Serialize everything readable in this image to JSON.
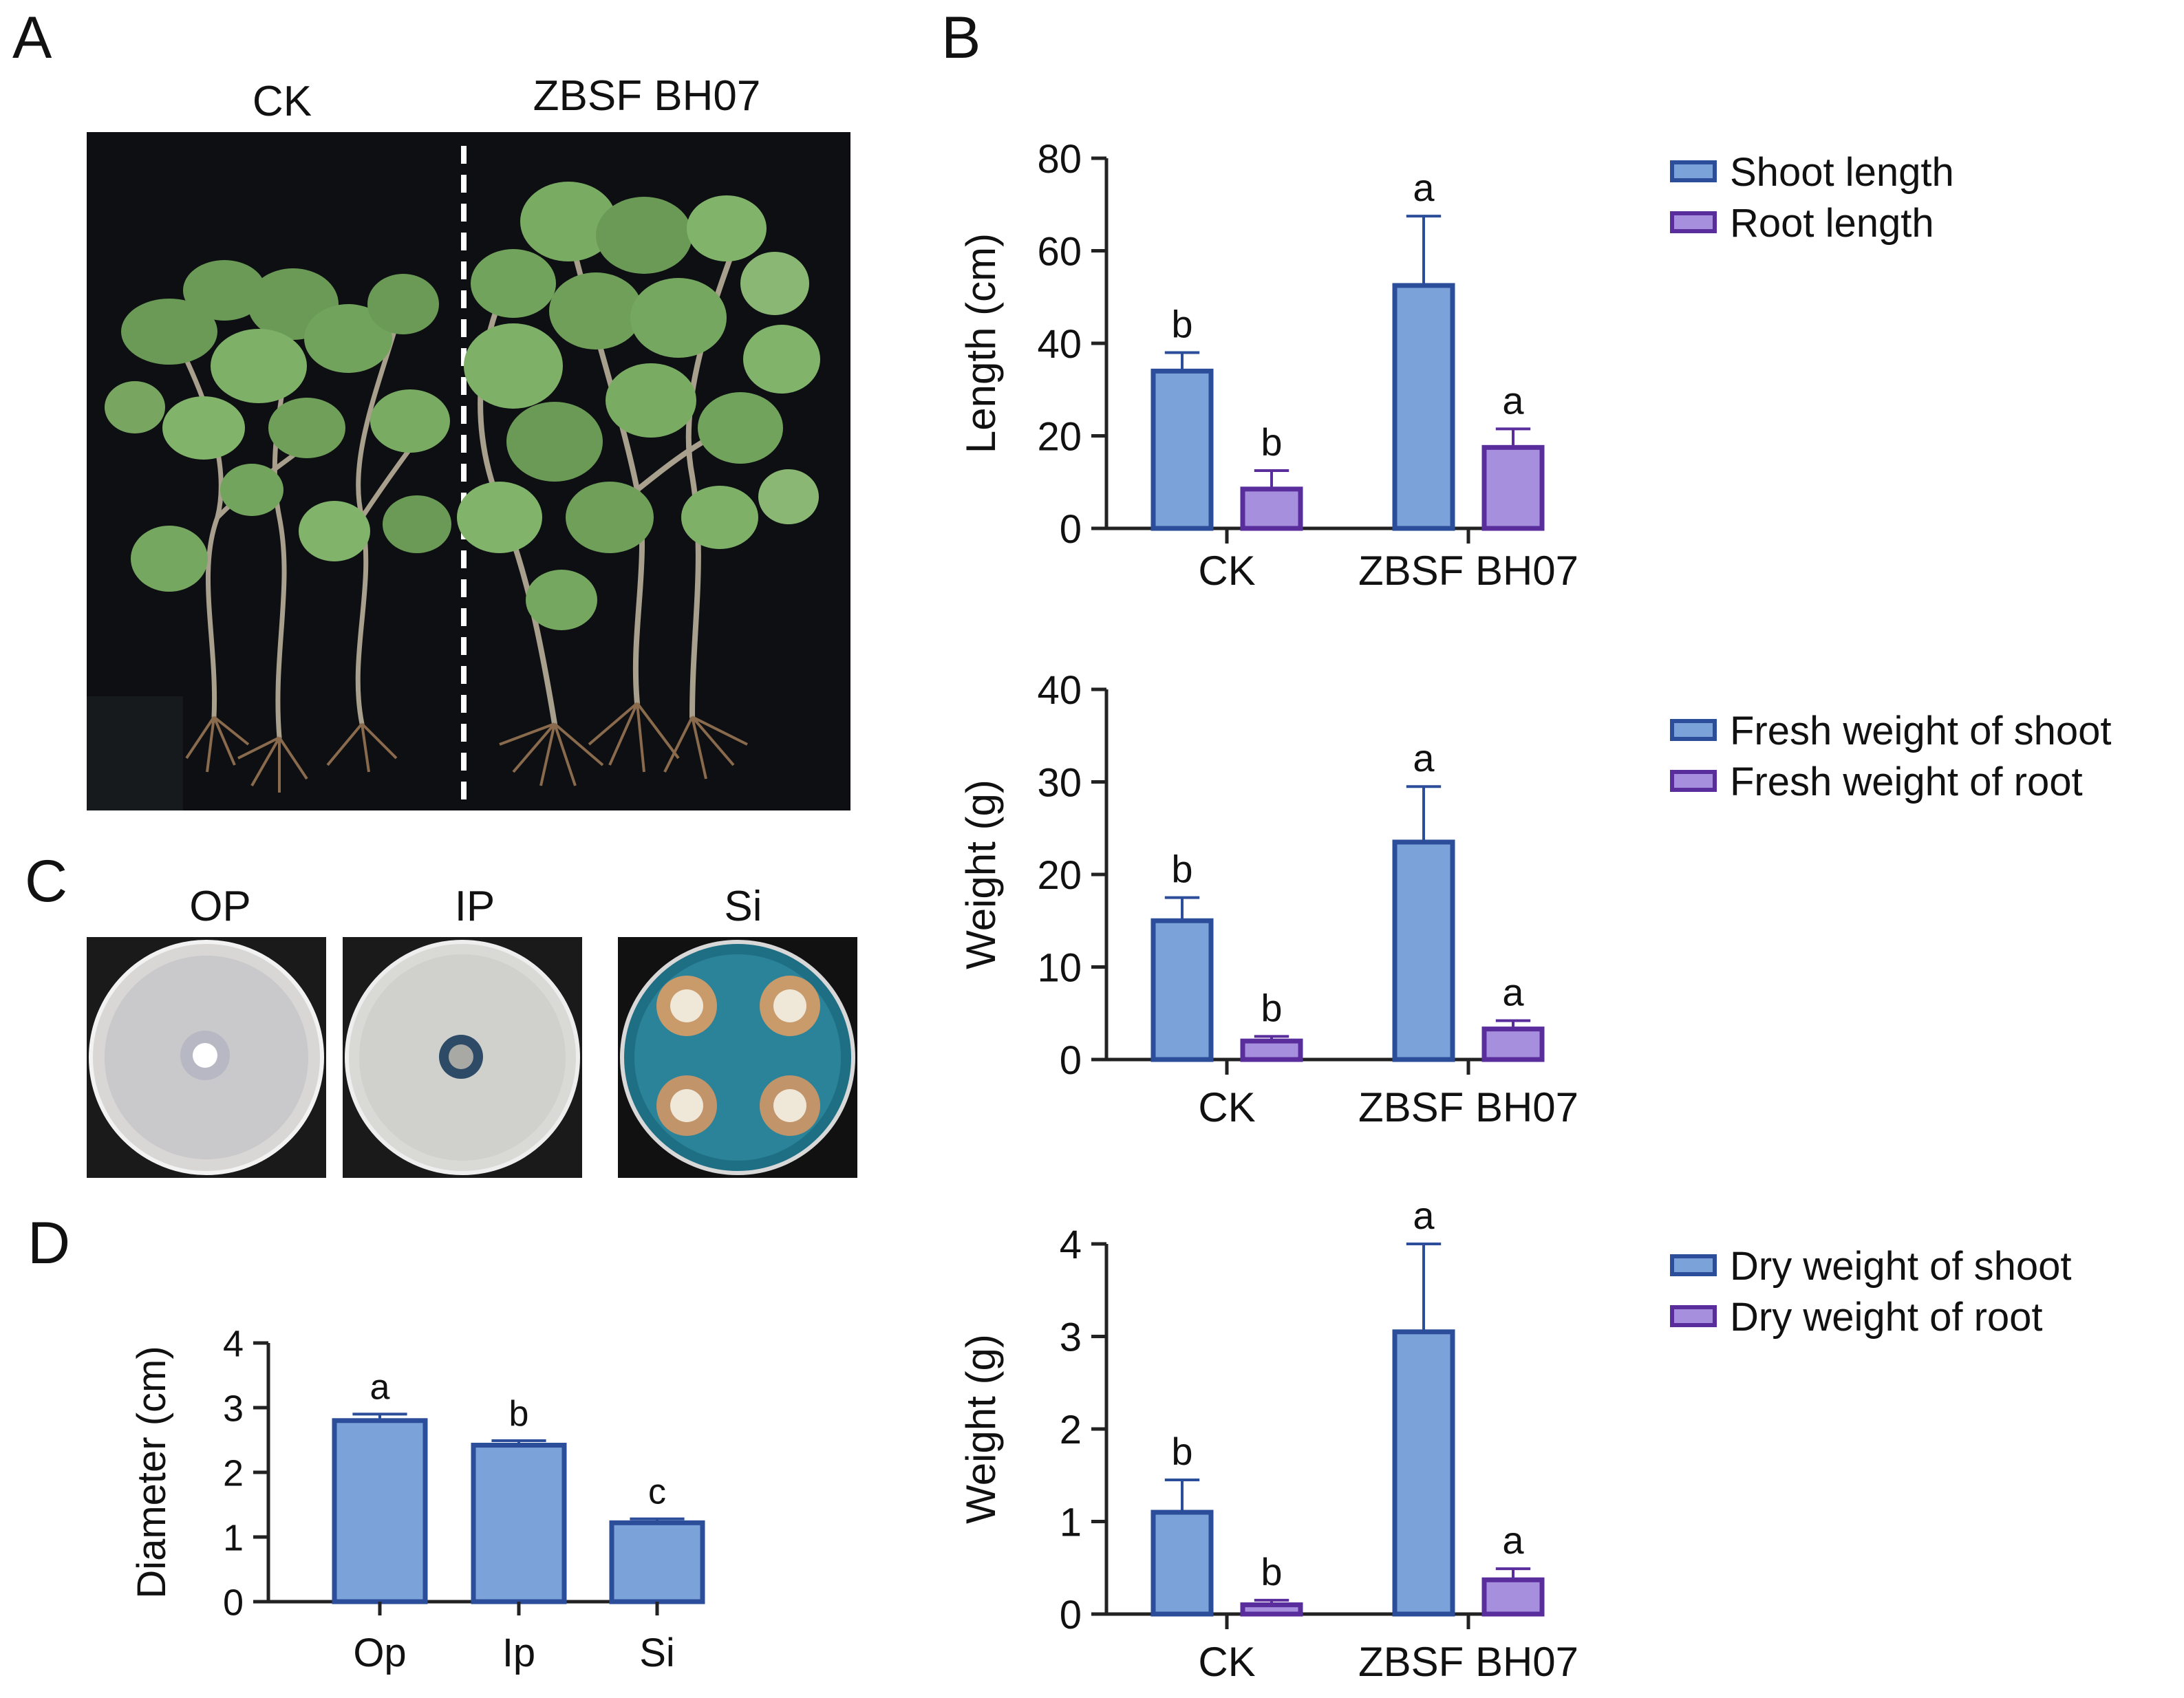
{
  "panels": {
    "A": "A",
    "B": "B",
    "C": "C",
    "D": "D"
  },
  "photo_a": {
    "left_label": "CK",
    "right_label": "ZBSF BH07"
  },
  "photo_c": {
    "labels": [
      "OP",
      "IP",
      "Si"
    ]
  },
  "colors": {
    "shoot_fill": "#7BA3DA",
    "shoot_stroke": "#2B4D9A",
    "root_fill": "#A68FDD",
    "root_stroke": "#5A2D9D",
    "axis": "#222222"
  },
  "chart_data": [
    {
      "type": "bar",
      "id": "length",
      "categories": [
        "CK",
        "ZBSF BH07"
      ],
      "ylabel": "Length (cm)",
      "ylim": [
        0,
        80
      ],
      "yticks": [
        0,
        20,
        40,
        60,
        80
      ],
      "legend_position": "right",
      "series": [
        {
          "name": "Shoot length",
          "values": [
            34,
            52.5
          ],
          "errors": [
            4,
            15
          ],
          "letters": [
            "b",
            "a"
          ]
        },
        {
          "name": "Root length",
          "values": [
            8.5,
            17.5
          ],
          "errors": [
            4,
            4
          ],
          "letters": [
            "b",
            "a"
          ]
        }
      ]
    },
    {
      "type": "bar",
      "id": "fresh",
      "categories": [
        "CK",
        "ZBSF BH07"
      ],
      "ylabel": "Weight (g)",
      "ylim": [
        0,
        40
      ],
      "yticks": [
        0,
        10,
        20,
        30,
        40
      ],
      "legend_position": "right",
      "series": [
        {
          "name": "Fresh weight of shoot",
          "values": [
            15,
            23.5
          ],
          "errors": [
            2.5,
            6
          ],
          "letters": [
            "b",
            "a"
          ]
        },
        {
          "name": "Fresh weight of root",
          "values": [
            2,
            3.3
          ],
          "errors": [
            0.5,
            0.9
          ],
          "letters": [
            "b",
            "a"
          ]
        }
      ]
    },
    {
      "type": "bar",
      "id": "dry",
      "categories": [
        "CK",
        "ZBSF BH07"
      ],
      "ylabel": "Weight (g)",
      "ylim": [
        0,
        4
      ],
      "yticks": [
        0,
        1,
        2,
        3,
        4
      ],
      "legend_position": "right",
      "series": [
        {
          "name": "Dry weight of shoot",
          "values": [
            1.1,
            3.05
          ],
          "errors": [
            0.35,
            0.95
          ],
          "letters": [
            "b",
            "a"
          ]
        },
        {
          "name": "Dry weight of root",
          "values": [
            0.1,
            0.37
          ],
          "errors": [
            0.05,
            0.12
          ],
          "letters": [
            "b",
            "a"
          ]
        }
      ]
    },
    {
      "type": "bar",
      "id": "diameter",
      "categories": [
        "Op",
        "Ip",
        "Si"
      ],
      "ylabel": "Diameter (cm)",
      "ylim": [
        0,
        4
      ],
      "yticks": [
        0,
        1,
        2,
        3,
        4
      ],
      "series": [
        {
          "values": [
            2.8,
            2.42,
            1.22
          ],
          "errors": [
            0.1,
            0.07,
            0.06
          ],
          "letters": [
            "a",
            "b",
            "c"
          ]
        }
      ]
    }
  ]
}
